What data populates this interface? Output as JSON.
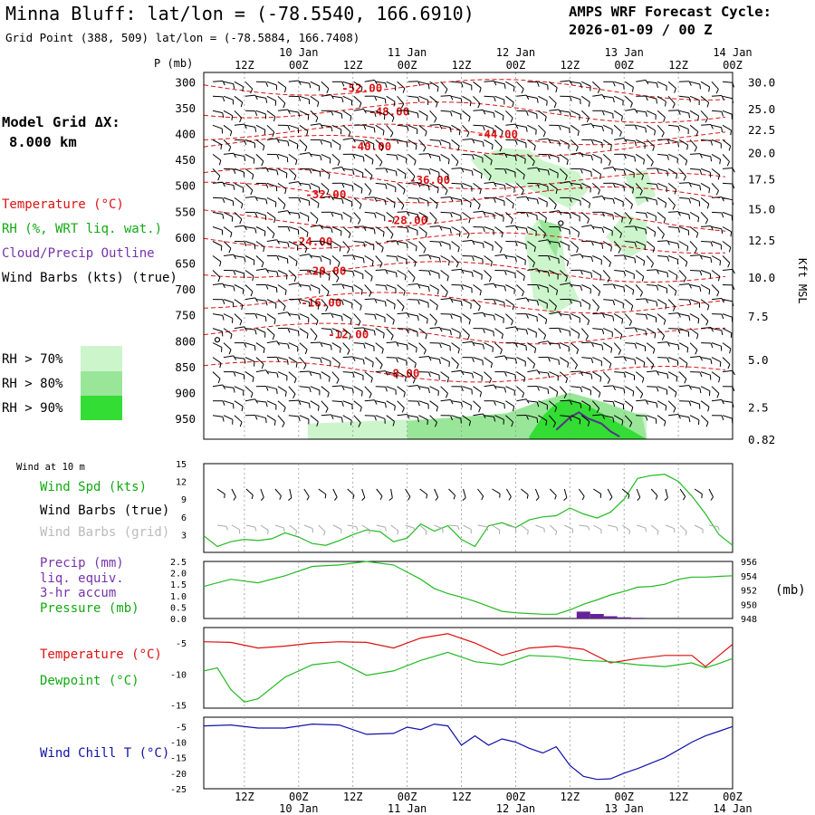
{
  "header": {
    "title": "Minna Bluff:  lat/lon = (-78.5540, 166.6910)",
    "gridpoint": "Grid Point (388, 509) lat/lon = (-78.5884, 166.7408)",
    "forecast_label": "AMPS WRF Forecast Cycle:",
    "forecast_cycle": "2026-01-09 / 00  Z"
  },
  "left_panel": {
    "grid_label": "Model Grid ΔX:",
    "grid_value": "8.000 km",
    "legend": [
      {
        "label": "Temperature (°C)",
        "color": "#dd1111"
      },
      {
        "label": "RH (%, WRT liq. wat.)",
        "color": "#11aa11"
      },
      {
        "label": "Cloud/Precip Outline",
        "color": "#7733aa"
      },
      {
        "label": "Wind Barbs (kts) (true)",
        "color": "#000000"
      }
    ],
    "rh_legend": [
      {
        "label": "RH > 70%",
        "color": "#ccf5cc"
      },
      {
        "label": "RH > 80%",
        "color": "#99e699"
      },
      {
        "label": "RH > 90%",
        "color": "#33dd33"
      }
    ]
  },
  "colors": {
    "temperature": "#dd1111",
    "rh": "#22bb22",
    "cloud": "#553388",
    "wind_chill": "#1111aa",
    "grid_barb": "#aaaaaa",
    "precip": "#662299"
  },
  "time_axis": {
    "tick_labels": [
      "12Z",
      "00Z",
      "12Z",
      "00Z",
      "12Z",
      "00Z",
      "12Z",
      "00Z",
      "12Z",
      "00Z"
    ],
    "date_labels": [
      "10 Jan",
      "11 Jan",
      "12 Jan",
      "13 Jan",
      "14 Jan"
    ],
    "range_hours": [
      3,
      120
    ]
  },
  "chart_data": [
    {
      "type": "heatmap",
      "name": "cross-section",
      "ylabel": "P (mb)",
      "ylabel2": "Kft MSL",
      "pressure_ticks": [
        300,
        350,
        400,
        450,
        500,
        550,
        600,
        650,
        700,
        750,
        800,
        850,
        900,
        950
      ],
      "height_ticks": [
        {
          "p": 300,
          "label": "30.0"
        },
        {
          "p": 352,
          "label": "25.0"
        },
        {
          "p": 392,
          "label": "22.5"
        },
        {
          "p": 437,
          "label": "20.0"
        },
        {
          "p": 487,
          "label": "17.5"
        },
        {
          "p": 545,
          "label": "15.0"
        },
        {
          "p": 605,
          "label": "12.5"
        },
        {
          "p": 677,
          "label": "10.0"
        },
        {
          "p": 752,
          "label": "7.5"
        },
        {
          "p": 836,
          "label": "5.0"
        },
        {
          "p": 928,
          "label": "2.5"
        },
        {
          "p": 990,
          "label": "0.82"
        }
      ],
      "pressure_range": [
        282,
        990
      ],
      "temperature_labels": [
        {
          "text": "-52.00",
          "t": 38,
          "p": 313
        },
        {
          "text": "-48.00",
          "t": 44,
          "p": 358
        },
        {
          "text": "-44.00",
          "t": 68,
          "p": 402
        },
        {
          "text": "-40.00",
          "t": 40,
          "p": 425
        },
        {
          "text": "-36.00",
          "t": 53,
          "p": 490
        },
        {
          "text": "-32.00",
          "t": 30,
          "p": 518
        },
        {
          "text": "-28.00",
          "t": 48,
          "p": 568
        },
        {
          "text": "-24.00",
          "t": 27,
          "p": 609
        },
        {
          "text": "-20.00",
          "t": 30,
          "p": 666
        },
        {
          "text": "-16.00",
          "t": 29,
          "p": 727
        },
        {
          "text": "-12.00",
          "t": 35,
          "p": 788
        },
        {
          "text": "-8.00",
          "t": 47,
          "p": 863
        }
      ],
      "rh70_regions": [
        [
          [
            62,
            450
          ],
          [
            69,
            428
          ],
          [
            75,
            432
          ],
          [
            78,
            452
          ],
          [
            86,
            475
          ],
          [
            88,
            510
          ],
          [
            84,
            545
          ],
          [
            78,
            520
          ],
          [
            73,
            498
          ],
          [
            66,
            492
          ]
        ],
        [
          [
            74,
            600
          ],
          [
            77,
            565
          ],
          [
            82,
            580
          ],
          [
            83,
            660
          ],
          [
            86,
            720
          ],
          [
            80,
            752
          ],
          [
            76,
            720
          ]
        ],
        [
          [
            92,
            600
          ],
          [
            96,
            555
          ],
          [
            101,
            570
          ],
          [
            101,
            620
          ],
          [
            97,
            640
          ]
        ],
        [
          [
            96,
            480
          ],
          [
            101,
            470
          ],
          [
            103,
            520
          ],
          [
            99,
            540
          ]
        ],
        [
          [
            26,
            960
          ],
          [
            40,
            955
          ],
          [
            55,
            950
          ],
          [
            65,
            945
          ],
          [
            75,
            940
          ],
          [
            80,
            935
          ],
          [
            90,
            935
          ],
          [
            101,
            940
          ],
          [
            101,
            990
          ],
          [
            26,
            990
          ]
        ]
      ],
      "rh80_regions": [
        [
          [
            77,
            565
          ],
          [
            82,
            578
          ],
          [
            81,
            640
          ],
          [
            79,
            610
          ]
        ],
        [
          [
            48,
            955
          ],
          [
            58,
            948
          ],
          [
            70,
            940
          ],
          [
            78,
            915
          ],
          [
            84,
            900
          ],
          [
            92,
            920
          ],
          [
            100,
            945
          ],
          [
            101,
            990
          ],
          [
            48,
            990
          ]
        ]
      ],
      "rh90_regions": [
        [
          [
            75,
            985
          ],
          [
            78,
            945
          ],
          [
            81,
            920
          ],
          [
            84,
            912
          ],
          [
            88,
            925
          ],
          [
            93,
            950
          ],
          [
            98,
            975
          ],
          [
            101,
            990
          ],
          [
            75,
            990
          ]
        ]
      ],
      "cloud_outline": [
        [
          81,
          972
        ],
        [
          84,
          948
        ],
        [
          86,
          938
        ],
        [
          88,
          950
        ],
        [
          91,
          960
        ],
        [
          93,
          975
        ],
        [
          95,
          985
        ]
      ]
    },
    {
      "type": "line",
      "name": "wind-10m",
      "title": "Wind at 10 m",
      "ylabel": "Wind Spd (kts)",
      "yticks": [
        3,
        6,
        9,
        12,
        15
      ],
      "ylim": [
        0,
        15
      ],
      "legend": [
        "Wind Spd (kts)",
        "Wind Barbs (true)",
        "Wind Barbs (grid)"
      ],
      "series": [
        {
          "name": "Wind Spd",
          "t": [
            3,
            6,
            9,
            12,
            15,
            18,
            21,
            24,
            27,
            30,
            33,
            36,
            39,
            42,
            45,
            48,
            51,
            54,
            57,
            60,
            63,
            66,
            69,
            72,
            75,
            78,
            81,
            84,
            87,
            90,
            93,
            96,
            99,
            102,
            105,
            108,
            111,
            114,
            117,
            120
          ],
          "values": [
            2.8,
            1.0,
            1.8,
            2.2,
            2.0,
            2.3,
            3.3,
            2.6,
            1.5,
            1.2,
            2.0,
            3.0,
            3.8,
            3.5,
            1.8,
            2.4,
            4.8,
            3.6,
            4.5,
            2.2,
            1.0,
            4.5,
            5.0,
            4.2,
            5.5,
            6.0,
            6.2,
            7.5,
            6.5,
            5.8,
            6.8,
            9.0,
            12.5,
            13.0,
            13.2,
            12.0,
            9.5,
            6.5,
            3.0,
            1.2
          ]
        }
      ]
    },
    {
      "type": "line",
      "name": "precip-pressure",
      "ylabel": "Precip (mm) liq. equiv. 3-hr accum",
      "ylabel2": "Pressure (mb)",
      "yticks": [
        "0.0",
        "0.5",
        "1.0",
        "1.5",
        "2.0",
        "2.5"
      ],
      "yticks2": [
        "948",
        "950",
        "952",
        "954",
        "956"
      ],
      "ylim": [
        0,
        2.5
      ],
      "ylim2": [
        948,
        956
      ],
      "right_unit": "(mb)",
      "series": [
        {
          "name": "Pressure",
          "t": [
            3,
            9,
            15,
            21,
            27,
            33,
            39,
            45,
            51,
            54,
            57,
            60,
            63,
            66,
            69,
            72,
            75,
            78,
            81,
            84,
            87,
            90,
            93,
            96,
            99,
            102,
            105,
            108,
            111,
            114,
            117,
            120
          ],
          "values": [
            952.5,
            953.5,
            953.0,
            954.0,
            955.3,
            955.5,
            956.0,
            955.5,
            953.5,
            952.2,
            951.5,
            951.0,
            950.4,
            949.7,
            949.0,
            948.8,
            948.7,
            948.6,
            948.6,
            949.2,
            950.0,
            950.6,
            951.3,
            951.8,
            952.4,
            952.5,
            952.8,
            953.5,
            953.8,
            953.8,
            953.9,
            954.0
          ]
        }
      ],
      "precip": [
        {
          "t": 87,
          "value": 0.3
        },
        {
          "t": 90,
          "value": 0.2
        },
        {
          "t": 93,
          "value": 0.1
        },
        {
          "t": 96,
          "value": 0.05
        },
        {
          "t": 99,
          "value": 0.03
        }
      ]
    },
    {
      "type": "line",
      "name": "temp-dewpoint",
      "yticks": [
        -15,
        -10,
        -5
      ],
      "ylim": [
        -15.5,
        -2.5
      ],
      "legend": [
        "Temperature (°C)",
        "Dewpoint (°C)"
      ],
      "series": [
        {
          "name": "Temperature",
          "t": [
            3,
            9,
            15,
            21,
            27,
            33,
            39,
            45,
            51,
            57,
            63,
            69,
            75,
            81,
            87,
            93,
            99,
            105,
            111,
            114,
            117,
            120
          ],
          "values": [
            -4.8,
            -4.9,
            -5.8,
            -5.5,
            -5.0,
            -4.8,
            -4.9,
            -5.8,
            -4.2,
            -3.5,
            -5.0,
            -7.0,
            -5.8,
            -5.5,
            -6.0,
            -8.2,
            -7.5,
            -7.0,
            -7.0,
            -8.8,
            -7.0,
            -5.2
          ]
        },
        {
          "name": "Dewpoint",
          "t": [
            3,
            6,
            9,
            12,
            15,
            21,
            27,
            33,
            39,
            45,
            51,
            57,
            63,
            69,
            75,
            81,
            87,
            93,
            99,
            105,
            111,
            114,
            117,
            120
          ],
          "values": [
            -9.5,
            -9.0,
            -12.5,
            -14.5,
            -14.0,
            -10.5,
            -8.5,
            -8.0,
            -10.2,
            -9.5,
            -7.8,
            -6.5,
            -8.0,
            -8.5,
            -7.0,
            -7.2,
            -7.8,
            -8.0,
            -8.5,
            -8.8,
            -8.2,
            -9.0,
            -8.3,
            -7.5
          ]
        }
      ]
    },
    {
      "type": "line",
      "name": "wind-chill",
      "ylabel": "Wind Chill T (°C)",
      "yticks": [
        -25,
        -20,
        -15,
        -10,
        -5
      ],
      "ylim": [
        -25,
        -2
      ],
      "series": [
        {
          "name": "Wind Chill",
          "t": [
            3,
            9,
            15,
            21,
            27,
            33,
            39,
            45,
            48,
            51,
            54,
            57,
            60,
            63,
            66,
            69,
            72,
            75,
            78,
            81,
            84,
            87,
            90,
            93,
            96,
            99,
            105,
            111,
            114,
            117,
            120
          ],
          "values": [
            -4.8,
            -4.5,
            -5.5,
            -5.5,
            -4.2,
            -4.5,
            -7.5,
            -7.2,
            -5.2,
            -6.0,
            -4.2,
            -4.8,
            -11.0,
            -8.0,
            -11.0,
            -9.0,
            -10.0,
            -12.0,
            -13.5,
            -11.5,
            -17.5,
            -21.0,
            -22.0,
            -21.8,
            -20.0,
            -18.5,
            -15.0,
            -10.0,
            -8.0,
            -6.5,
            -5.0
          ]
        }
      ]
    }
  ]
}
